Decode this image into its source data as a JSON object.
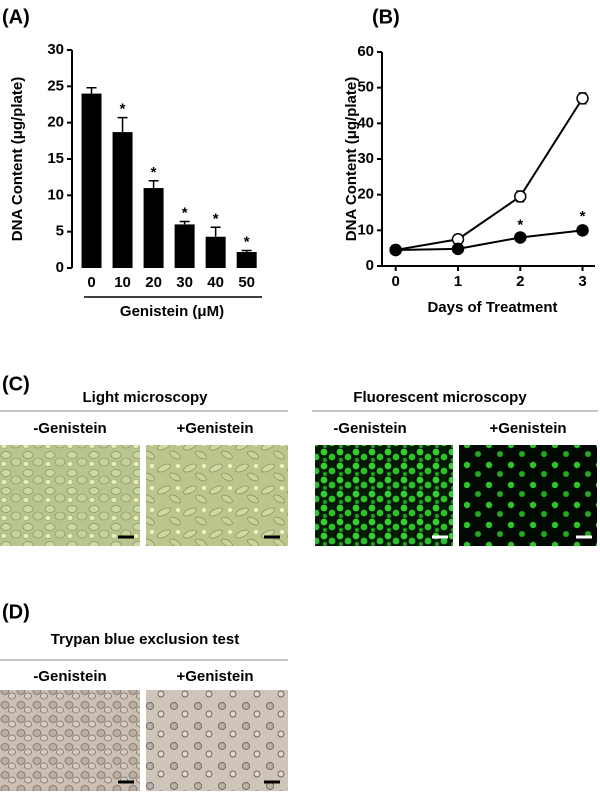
{
  "chart_data": [
    {
      "type": "bar",
      "panel": "(A)",
      "categories": [
        "0",
        "10",
        "20",
        "30",
        "40",
        "50"
      ],
      "values": [
        24,
        18.7,
        11,
        6,
        4.3,
        2.2
      ],
      "errors": [
        0.8,
        2,
        1,
        0.4,
        1.3,
        0.2
      ],
      "markers": [
        null,
        "*",
        "*",
        "*",
        "*",
        "*"
      ],
      "color": "#000000",
      "ylabel": "DNA Content (μg/plate)",
      "xlabel": "Genistein (μM)",
      "ylim": [
        0,
        30
      ],
      "yticks": [
        0,
        5,
        10,
        15,
        20,
        25,
        30
      ]
    },
    {
      "type": "line",
      "panel": "(B)",
      "x": [
        0,
        1,
        2,
        3
      ],
      "series": [
        {
          "color": "#000000",
          "fill": "#ffffff",
          "values": [
            4.5,
            7.5,
            19.5,
            47
          ],
          "errors": [
            0.5,
            0.8,
            1.5,
            1.5
          ],
          "markers": [
            null,
            null,
            null,
            null
          ]
        },
        {
          "color": "#000000",
          "fill": "#000000",
          "values": [
            4.5,
            4.8,
            8,
            10
          ],
          "errors": [
            0.3,
            0.3,
            0.8,
            1.2
          ],
          "markers": [
            null,
            null,
            "*",
            "*"
          ]
        }
      ],
      "ylabel": "DNA Content (μg/plate)",
      "xlabel": "Days of Treatment",
      "xlim": [
        -0.22,
        3.2
      ],
      "xticks": [
        0,
        1,
        2,
        3
      ],
      "ylim": [
        0,
        60
      ],
      "yticks": [
        0,
        10,
        20,
        30,
        40,
        50,
        60
      ]
    }
  ],
  "panel_c": {
    "label": "(C)",
    "groups": [
      {
        "title": "Light microscopy",
        "images": [
          "-Genistein",
          "+Genistein"
        ]
      },
      {
        "title": "Fluorescent microscopy",
        "images": [
          "-Genistein",
          "+Genistein"
        ]
      }
    ]
  },
  "panel_d": {
    "label": "(D)",
    "title": "Trypan blue exclusion test",
    "images": [
      "-Genistein",
      "+Genistein"
    ]
  }
}
